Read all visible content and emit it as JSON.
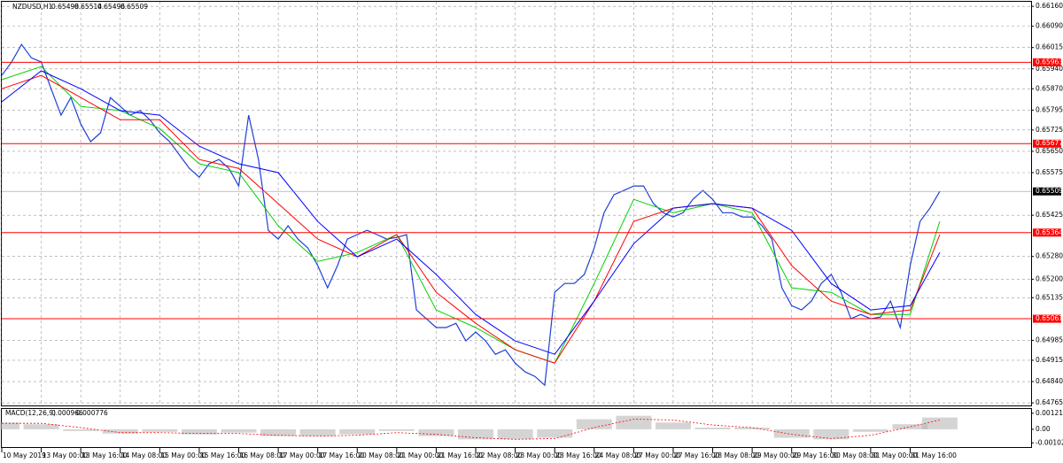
{
  "chart_data": [
    {
      "type": "line",
      "symbol": "NZDUSD,H1",
      "ohlc": [
        0.65498,
        0.65514,
        0.65496,
        0.65509
      ],
      "xlim": [
        0,
        417
      ],
      "xticks": [
        {
          "value": 0,
          "label": "10 May 2019"
        },
        {
          "value": 16,
          "label": "13 May 00:00"
        },
        {
          "value": 32,
          "label": "13 May 16:00"
        },
        {
          "value": 48,
          "label": "14 May 08:00"
        },
        {
          "value": 64,
          "label": "15 May 00:00"
        },
        {
          "value": 80,
          "label": "15 May 16:00"
        },
        {
          "value": 96,
          "label": "16 May 08:00"
        },
        {
          "value": 112,
          "label": "17 May 00:00"
        },
        {
          "value": 128,
          "label": "17 May 16:00"
        },
        {
          "value": 144,
          "label": "20 May 08:00"
        },
        {
          "value": 160,
          "label": "21 May 00:00"
        },
        {
          "value": 176,
          "label": "21 May 16:00"
        },
        {
          "value": 192,
          "label": "22 May 08:00"
        },
        {
          "value": 208,
          "label": "23 May 00:00"
        },
        {
          "value": 224,
          "label": "23 May 16:00"
        },
        {
          "value": 240,
          "label": "24 May 08:00"
        },
        {
          "value": 256,
          "label": "27 May 00:00"
        },
        {
          "value": 272,
          "label": "27 May 16:00"
        },
        {
          "value": 288,
          "label": "28 May 08:00"
        },
        {
          "value": 304,
          "label": "29 May 00:00"
        },
        {
          "value": 320,
          "label": "29 May 16:00"
        },
        {
          "value": 336,
          "label": "30 May 08:00"
        },
        {
          "value": 352,
          "label": "31 May 00:00"
        },
        {
          "value": 368,
          "label": "31 May 16:00"
        }
      ],
      "ylim": [
        0.64756,
        0.66176
      ],
      "yticks": [
        {
          "value": 0.6616,
          "label": "0.66160"
        },
        {
          "value": 0.6609,
          "label": "0.66090"
        },
        0.66015,
        {
          "value": 0.6594,
          "label": "0.65940"
        },
        {
          "value": 0.6587,
          "label": "0.65870"
        },
        0.65795,
        0.65725,
        {
          "value": 0.6565,
          "label": "0.65650"
        },
        0.65575,
        0.65425,
        {
          "value": 0.6528,
          "label": "0.65280"
        },
        {
          "value": 0.652,
          "label": "0.65200"
        },
        0.65135,
        0.64985,
        0.64915,
        {
          "value": 0.6484,
          "label": "0.64840"
        },
        0.64765
      ],
      "grid": true,
      "levels": [
        {
          "value": 0.65963,
          "color": "#ff0000"
        },
        {
          "value": 0.65677,
          "color": "#ff0000"
        },
        {
          "value": 0.65364,
          "color": "#ff0000"
        },
        {
          "value": 0.65061,
          "color": "#ff0000"
        }
      ],
      "current_price": 0.65509,
      "series": [
        {
          "color": "#1f3fd6",
          "x": [
            0,
            4,
            8,
            12,
            16,
            20,
            24,
            28,
            32,
            36,
            40,
            44,
            48,
            52,
            56,
            60,
            64,
            68,
            72,
            76,
            80,
            84,
            88,
            92,
            96,
            100,
            104,
            108,
            112,
            116,
            120,
            124,
            128,
            132,
            136,
            140,
            144,
            148,
            152,
            156,
            160,
            164,
            168,
            172,
            176,
            180,
            184,
            188,
            192,
            196,
            200,
            204,
            208,
            212,
            216,
            220,
            224,
            228,
            232,
            236,
            240,
            244,
            248,
            252,
            256,
            260,
            264,
            268,
            272,
            276,
            280,
            284,
            288,
            292,
            296,
            300,
            304,
            308,
            312,
            316,
            320,
            324,
            328,
            332,
            336,
            340,
            344,
            348,
            352,
            356,
            360,
            364,
            368,
            372,
            376,
            380
          ],
          "values": [
            0.65917,
            0.65964,
            0.66026,
            0.65979,
            0.65964,
            0.6587,
            0.65777,
            0.65839,
            0.65746,
            0.65684,
            0.65715,
            0.65839,
            0.65808,
            0.65777,
            0.65793,
            0.65761,
            0.65715,
            0.65684,
            0.65637,
            0.6559,
            0.65559,
            0.65606,
            0.65621,
            0.6559,
            0.65528,
            0.65777,
            0.65621,
            0.65372,
            0.65341,
            0.65388,
            0.65341,
            0.6531,
            0.65248,
            0.6517,
            0.65248,
            0.65341,
            0.65357,
            0.65372,
            0.65357,
            0.65341,
            0.65347,
            0.65357,
            0.65092,
            0.65061,
            0.6503,
            0.6503,
            0.65045,
            0.64983,
            0.65014,
            0.64983,
            0.64936,
            0.64952,
            0.64905,
            0.64874,
            0.64858,
            0.64827,
            0.65154,
            0.65185,
            0.65185,
            0.65217,
            0.6531,
            0.65434,
            0.65497,
            0.65512,
            0.65528,
            0.65528,
            0.65466,
            0.65434,
            0.65419,
            0.65434,
            0.65481,
            0.65512,
            0.65481,
            0.65434,
            0.65434,
            0.65419,
            0.65419,
            0.65388,
            0.65341,
            0.6517,
            0.65107,
            0.65092,
            0.65123,
            0.65185,
            0.65217,
            0.65154,
            0.65061,
            0.65076,
            0.65061,
            0.65067,
            0.65123,
            0.6503,
            0.65248,
            0.65403,
            0.6545,
            0.65509
          ]
        },
        {
          "color": "#00d000",
          "x": [
            0,
            16,
            32,
            48,
            64,
            80,
            96,
            112,
            128,
            144,
            160,
            176,
            192,
            208,
            224,
            240,
            256,
            272,
            288,
            304,
            320,
            336,
            352,
            368,
            380
          ],
          "values": [
            0.65902,
            0.65948,
            0.65808,
            0.65793,
            0.6573,
            0.65606,
            0.65575,
            0.65388,
            0.65263,
            0.65294,
            0.65357,
            0.65092,
            0.6503,
            0.64952,
            0.64905,
            0.65185,
            0.65481,
            0.65434,
            0.65466,
            0.65434,
            0.6517,
            0.65154,
            0.65076,
            0.65076,
            0.65403
          ]
        },
        {
          "color": "#ff0000",
          "x": [
            0,
            16,
            32,
            48,
            64,
            80,
            96,
            112,
            128,
            144,
            160,
            176,
            192,
            208,
            224,
            240,
            256,
            272,
            288,
            304,
            320,
            336,
            352,
            368,
            380
          ],
          "values": [
            0.6587,
            0.65917,
            0.65839,
            0.65761,
            0.65761,
            0.65621,
            0.6559,
            0.65466,
            0.65341,
            0.65279,
            0.65357,
            0.65154,
            0.65045,
            0.64952,
            0.64905,
            0.65123,
            0.65403,
            0.6545,
            0.65466,
            0.6545,
            0.65248,
            0.65123,
            0.65076,
            0.65092,
            0.65357
          ]
        },
        {
          "color": "#0000ff",
          "x": [
            0,
            16,
            32,
            48,
            64,
            80,
            96,
            112,
            128,
            144,
            160,
            176,
            192,
            208,
            224,
            240,
            256,
            272,
            288,
            304,
            320,
            336,
            352,
            368,
            380
          ],
          "values": [
            0.65824,
            0.65933,
            0.6587,
            0.65793,
            0.65777,
            0.65668,
            0.65606,
            0.65575,
            0.65403,
            0.65279,
            0.65341,
            0.65217,
            0.65076,
            0.64983,
            0.64936,
            0.65123,
            0.65325,
            0.6545,
            0.65466,
            0.6545,
            0.65372,
            0.65185,
            0.65092,
            0.65107,
            0.65294
          ]
        }
      ]
    },
    {
      "type": "bar",
      "title": "MACD(12,26,9)",
      "header_values": [
        0.000966,
        0.000776
      ],
      "xlim": [
        0,
        417
      ],
      "ylim": [
        -0.00134,
        0.00153
      ],
      "yticks": [
        0.00121,
        {
          "value": 0,
          "label": "0.00"
        },
        -0.001023
      ],
      "color": "#b8b8b8",
      "x": [
        0,
        16,
        32,
        48,
        64,
        80,
        96,
        112,
        128,
        144,
        160,
        176,
        192,
        208,
        224,
        240,
        256,
        272,
        288,
        304,
        320,
        336,
        352,
        368,
        380
      ],
      "values": [
        0.00051,
        0.00038,
        -0.00013,
        -0.00032,
        -0.00019,
        -0.00038,
        -0.00025,
        -0.00051,
        -0.00051,
        -0.00038,
        -0.00013,
        -0.00051,
        -0.00076,
        -0.00076,
        -0.00064,
        0.00076,
        0.00102,
        0.00051,
        0.00013,
        0.00013,
        -0.00064,
        -0.00076,
        -0.00019,
        0.00038,
        0.00089
      ],
      "signal": {
        "color": "#ff0000",
        "values": [
          0.00045,
          0.00045,
          0.00013,
          -0.00025,
          -0.00025,
          -0.00032,
          -0.00032,
          -0.00045,
          -0.00051,
          -0.00045,
          -0.00025,
          -0.00038,
          -0.00064,
          -0.00076,
          -0.0007,
          0.00013,
          0.00076,
          0.0007,
          0.00032,
          0.00013,
          -0.00038,
          -0.0007,
          -0.00045,
          0.00019,
          0.0007
        ]
      }
    }
  ]
}
